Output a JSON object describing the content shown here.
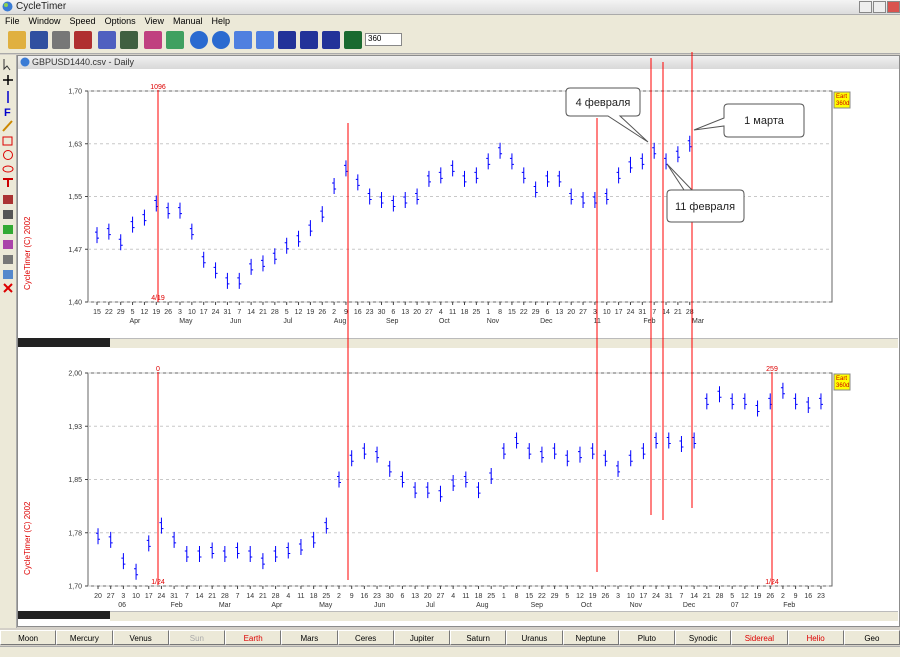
{
  "window": {
    "title": "CycleTimer",
    "menu": [
      "File",
      "Window",
      "Speed",
      "Options",
      "View",
      "Manual",
      "Help"
    ],
    "toolbar_input": "360"
  },
  "document": {
    "title": "GBPUSD1440.csv - Daily",
    "watermark": "CycleTimer (C) 2002",
    "badge": [
      "Eart",
      "360d"
    ],
    "callouts": [
      "4 февраля",
      "11 февраля",
      "1 марта"
    ],
    "cycle_labels": {
      "top": [
        1096,
        "4/19"
      ],
      "bottom_left": [
        0,
        "1/24"
      ],
      "bottom_right": [
        259,
        "1/24"
      ]
    }
  },
  "chart_data": [
    {
      "type": "ohlc",
      "color": "#0000ff",
      "grid": true,
      "ylim": [
        1.4,
        1.7
      ],
      "yticks": [
        {
          "value": 1.4,
          "label": "1,40"
        },
        {
          "value": 1.475,
          "label": "1,47"
        },
        {
          "value": 1.55,
          "label": "1,55"
        },
        {
          "value": 1.625,
          "label": "1,63"
        },
        {
          "value": 1.7,
          "label": "1,70"
        }
      ],
      "xlim": [
        -0.76,
        62.0
      ],
      "categories": [
        "15",
        "22",
        "29",
        "5",
        "12",
        "19",
        "26",
        "3",
        "10",
        "17",
        "24",
        "31",
        "7",
        "14",
        "21",
        "28",
        "5",
        "12",
        "19",
        "26",
        "2",
        "9",
        "16",
        "23",
        "30",
        "6",
        "13",
        "20",
        "27",
        "4",
        "11",
        "18",
        "25",
        "1",
        "8",
        "15",
        "22",
        "29",
        "6",
        "13",
        "20",
        "27",
        "3",
        "10",
        "17",
        "24",
        "31",
        "7",
        "14",
        "21",
        "28"
      ],
      "values": [
        1.495,
        1.5,
        1.485,
        1.51,
        1.52,
        1.54,
        1.53,
        1.53,
        1.5,
        1.46,
        1.445,
        1.43,
        1.43,
        1.45,
        1.455,
        1.465,
        1.48,
        1.49,
        1.505,
        1.525,
        1.565,
        1.59,
        1.57,
        1.55,
        1.545,
        1.54,
        1.545,
        1.55,
        1.575,
        1.58,
        1.59,
        1.575,
        1.58,
        1.6,
        1.615,
        1.6,
        1.58,
        1.56,
        1.575,
        1.575,
        1.55,
        1.545,
        1.545,
        1.55,
        1.58,
        1.595,
        1.6,
        1.615,
        1.6,
        1.61,
        1.625
      ],
      "month_labels": [
        {
          "value": 3.2,
          "label": "Apr"
        },
        {
          "value": 7.5,
          "label": "May"
        },
        {
          "value": 11.7,
          "label": "Jun"
        },
        {
          "value": 16.1,
          "label": "Jul"
        },
        {
          "value": 20.5,
          "label": "Aug"
        },
        {
          "value": 24.9,
          "label": "Sep"
        },
        {
          "value": 29.3,
          "label": "Oct"
        },
        {
          "value": 33.4,
          "label": "Nov"
        },
        {
          "value": 37.9,
          "label": "Dec"
        },
        {
          "value": 42.2,
          "label": "11"
        },
        {
          "value": 46.6,
          "label": "Feb"
        },
        {
          "value": 50.7,
          "label": "Mar"
        }
      ]
    },
    {
      "type": "ohlc",
      "color": "#0000ff",
      "grid": true,
      "ylim": [
        1.7,
        2.0
      ],
      "yticks": [
        {
          "value": 1.7,
          "label": "1,70"
        },
        {
          "value": 1.775,
          "label": "1,78"
        },
        {
          "value": 1.85,
          "label": "1,85"
        },
        {
          "value": 1.925,
          "label": "1,93"
        },
        {
          "value": 2.0,
          "label": "2,00"
        }
      ],
      "xlim": [
        -0.79,
        57.87
      ],
      "categories": [
        "20",
        "27",
        "3",
        "10",
        "17",
        "24",
        "31",
        "7",
        "14",
        "21",
        "28",
        "7",
        "14",
        "21",
        "28",
        "4",
        "11",
        "18",
        "25",
        "2",
        "9",
        "16",
        "23",
        "30",
        "6",
        "13",
        "20",
        "27",
        "4",
        "11",
        "18",
        "25",
        "1",
        "8",
        "15",
        "22",
        "29",
        "5",
        "12",
        "19",
        "26",
        "3",
        "10",
        "17",
        "24",
        "31",
        "7",
        "14",
        "21",
        "28",
        "5",
        "12",
        "19",
        "26",
        "2",
        "9",
        "16",
        "23"
      ],
      "values": [
        1.77,
        1.765,
        1.735,
        1.72,
        1.76,
        1.785,
        1.765,
        1.745,
        1.745,
        1.75,
        1.745,
        1.75,
        1.745,
        1.735,
        1.745,
        1.75,
        1.755,
        1.765,
        1.785,
        1.85,
        1.88,
        1.89,
        1.885,
        1.865,
        1.85,
        1.835,
        1.835,
        1.83,
        1.845,
        1.85,
        1.835,
        1.855,
        1.89,
        1.905,
        1.89,
        1.885,
        1.89,
        1.88,
        1.885,
        1.89,
        1.88,
        1.865,
        1.88,
        1.89,
        1.905,
        1.905,
        1.9,
        1.905,
        1.96,
        1.97,
        1.96,
        1.96,
        1.95,
        1.96,
        1.975,
        1.96,
        1.955,
        1.96
      ],
      "month_labels": [
        {
          "value": 1.9,
          "label": "06"
        },
        {
          "value": 6.2,
          "label": "Feb"
        },
        {
          "value": 10.0,
          "label": "Mar"
        },
        {
          "value": 14.1,
          "label": "Apr"
        },
        {
          "value": 17.95,
          "label": "May"
        },
        {
          "value": 22.2,
          "label": "Jun"
        },
        {
          "value": 26.2,
          "label": "Jul"
        },
        {
          "value": 30.3,
          "label": "Aug"
        },
        {
          "value": 34.6,
          "label": "Sep"
        },
        {
          "value": 38.5,
          "label": "Oct"
        },
        {
          "value": 42.4,
          "label": "Nov"
        },
        {
          "value": 46.6,
          "label": "Dec"
        },
        {
          "value": 50.2,
          "label": "07"
        },
        {
          "value": 54.5,
          "label": "Feb"
        }
      ]
    }
  ],
  "tabs": [
    "Moon",
    "Mercury",
    "Venus",
    "Sun",
    "Earth",
    "Mars",
    "Ceres",
    "Jupiter",
    "Saturn",
    "Uranus",
    "Neptune",
    "Pluto",
    "Synodic",
    "Sidereal",
    "Helio",
    "Geo"
  ]
}
